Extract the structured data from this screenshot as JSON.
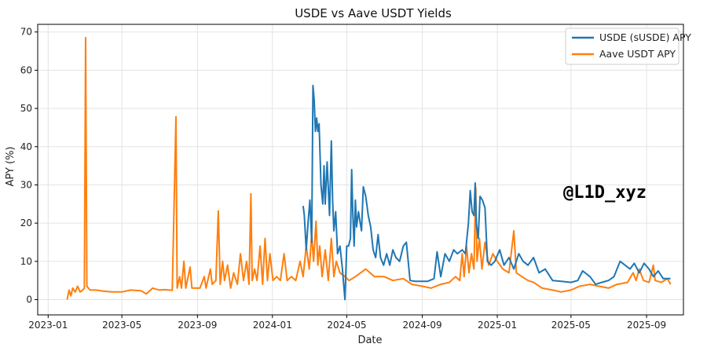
{
  "chart_data": {
    "type": "line",
    "title": "USDE vs Aave USDT Yields",
    "xlabel": "Date",
    "ylabel": "APY (%)",
    "x_ticks": [
      "2023-01",
      "2023-05",
      "2023-09",
      "2024-01",
      "2024-05",
      "2024-09",
      "2025-01",
      "2025-05",
      "2025-09"
    ],
    "y_ticks": [
      0,
      10,
      20,
      30,
      40,
      50,
      60,
      70
    ],
    "xlim": [
      "2022-12-15",
      "2025-10-31"
    ],
    "ylim": [
      -4,
      72
    ],
    "grid": true,
    "legend_position": "top-right",
    "watermark": "@L1D_xyz",
    "series": [
      {
        "name": "USDE (sUSDE) APY",
        "color": "#1f77b4",
        "points": [
          [
            "2024-02-20",
            24.5
          ],
          [
            "2024-02-22",
            22.0
          ],
          [
            "2024-02-25",
            13.0
          ],
          [
            "2024-02-28",
            20.0
          ],
          [
            "2024-03-02",
            26.0
          ],
          [
            "2024-03-05",
            15.0
          ],
          [
            "2024-03-07",
            56.0
          ],
          [
            "2024-03-09",
            52.0
          ],
          [
            "2024-03-11",
            44.0
          ],
          [
            "2024-03-13",
            47.5
          ],
          [
            "2024-03-15",
            44.0
          ],
          [
            "2024-03-17",
            46.0
          ],
          [
            "2024-03-20",
            30.0
          ],
          [
            "2024-03-23",
            25.0
          ],
          [
            "2024-03-25",
            35.0
          ],
          [
            "2024-03-27",
            25.0
          ],
          [
            "2024-03-30",
            36.0
          ],
          [
            "2024-04-03",
            22.0
          ],
          [
            "2024-04-06",
            41.5
          ],
          [
            "2024-04-08",
            26.0
          ],
          [
            "2024-04-10",
            18.0
          ],
          [
            "2024-04-13",
            23.0
          ],
          [
            "2024-04-16",
            12.0
          ],
          [
            "2024-04-20",
            14.0
          ],
          [
            "2024-04-24",
            8.0
          ],
          [
            "2024-04-28",
            0.0
          ],
          [
            "2024-05-01",
            14.0
          ],
          [
            "2024-05-04",
            14.0
          ],
          [
            "2024-05-07",
            16.0
          ],
          [
            "2024-05-09",
            34.0
          ],
          [
            "2024-05-11",
            22.0
          ],
          [
            "2024-05-13",
            14.0
          ],
          [
            "2024-05-15",
            26.0
          ],
          [
            "2024-05-17",
            19.0
          ],
          [
            "2024-05-20",
            23.0
          ],
          [
            "2024-05-23",
            20.0
          ],
          [
            "2024-05-25",
            18.0
          ],
          [
            "2024-05-28",
            29.5
          ],
          [
            "2024-06-01",
            27.0
          ],
          [
            "2024-06-05",
            22.0
          ],
          [
            "2024-06-09",
            19.0
          ],
          [
            "2024-06-13",
            13.0
          ],
          [
            "2024-06-17",
            11.0
          ],
          [
            "2024-06-21",
            17.0
          ],
          [
            "2024-06-25",
            11.0
          ],
          [
            "2024-06-30",
            9.0
          ],
          [
            "2024-07-05",
            12.0
          ],
          [
            "2024-07-10",
            9.0
          ],
          [
            "2024-07-15",
            13.0
          ],
          [
            "2024-07-20",
            11.0
          ],
          [
            "2024-07-26",
            10.0
          ],
          [
            "2024-08-01",
            14.0
          ],
          [
            "2024-08-06",
            15.0
          ],
          [
            "2024-08-12",
            5.0
          ],
          [
            "2024-08-20",
            4.8
          ],
          [
            "2024-09-01",
            4.8
          ],
          [
            "2024-09-10",
            4.8
          ],
          [
            "2024-09-20",
            5.5
          ],
          [
            "2024-09-25",
            12.5
          ],
          [
            "2024-10-01",
            6.0
          ],
          [
            "2024-10-08",
            12.0
          ],
          [
            "2024-10-15",
            10.0
          ],
          [
            "2024-10-22",
            13.0
          ],
          [
            "2024-10-28",
            12.0
          ],
          [
            "2024-11-05",
            13.0
          ],
          [
            "2024-11-10",
            12.0
          ],
          [
            "2024-11-15",
            20.0
          ],
          [
            "2024-11-18",
            28.5
          ],
          [
            "2024-11-21",
            23.0
          ],
          [
            "2024-11-24",
            22.0
          ],
          [
            "2024-11-26",
            30.5
          ],
          [
            "2024-11-28",
            20.0
          ],
          [
            "2024-12-01",
            16.0
          ],
          [
            "2024-12-04",
            27.0
          ],
          [
            "2024-12-08",
            26.0
          ],
          [
            "2024-12-12",
            24.0
          ],
          [
            "2024-12-16",
            10.0
          ],
          [
            "2024-12-22",
            9.0
          ],
          [
            "2024-12-28",
            10.0
          ],
          [
            "2025-01-05",
            13.0
          ],
          [
            "2025-01-12",
            9.0
          ],
          [
            "2025-01-20",
            11.0
          ],
          [
            "2025-01-28",
            8.0
          ],
          [
            "2025-02-05",
            12.0
          ],
          [
            "2025-02-12",
            10.0
          ],
          [
            "2025-02-20",
            9.0
          ],
          [
            "2025-03-01",
            11.0
          ],
          [
            "2025-03-10",
            7.0
          ],
          [
            "2025-03-20",
            8.0
          ],
          [
            "2025-04-01",
            5.0
          ],
          [
            "2025-04-15",
            4.8
          ],
          [
            "2025-05-01",
            4.5
          ],
          [
            "2025-05-12",
            5.0
          ],
          [
            "2025-05-20",
            7.5
          ],
          [
            "2025-06-01",
            6.0
          ],
          [
            "2025-06-10",
            4.0
          ],
          [
            "2025-06-20",
            4.5
          ],
          [
            "2025-07-01",
            5.0
          ],
          [
            "2025-07-10",
            6.0
          ],
          [
            "2025-07-20",
            10.0
          ],
          [
            "2025-07-28",
            9.0
          ],
          [
            "2025-08-05",
            8.0
          ],
          [
            "2025-08-12",
            9.5
          ],
          [
            "2025-08-20",
            7.0
          ],
          [
            "2025-08-28",
            9.5
          ],
          [
            "2025-09-05",
            8.0
          ],
          [
            "2025-09-12",
            6.0
          ],
          [
            "2025-09-20",
            7.5
          ],
          [
            "2025-09-28",
            5.5
          ],
          [
            "2025-10-10",
            5.5
          ]
        ]
      },
      {
        "name": "Aave USDT APY",
        "color": "#ff7f0e",
        "points": [
          [
            "2023-02-01",
            0.0
          ],
          [
            "2023-02-04",
            2.5
          ],
          [
            "2023-02-07",
            1.0
          ],
          [
            "2023-02-10",
            3.0
          ],
          [
            "2023-02-14",
            2.0
          ],
          [
            "2023-02-18",
            3.5
          ],
          [
            "2023-02-22",
            2.0
          ],
          [
            "2023-02-26",
            2.5
          ],
          [
            "2023-03-01",
            3.0
          ],
          [
            "2023-03-03",
            68.5
          ],
          [
            "2023-03-05",
            3.5
          ],
          [
            "2023-03-10",
            2.5
          ],
          [
            "2023-03-20",
            2.5
          ],
          [
            "2023-04-01",
            2.2
          ],
          [
            "2023-04-15",
            2.0
          ],
          [
            "2023-05-01",
            2.0
          ],
          [
            "2023-05-15",
            2.5
          ],
          [
            "2023-06-01",
            2.3
          ],
          [
            "2023-06-10",
            1.5
          ],
          [
            "2023-06-20",
            3.0
          ],
          [
            "2023-07-01",
            2.5
          ],
          [
            "2023-07-10",
            2.6
          ],
          [
            "2023-07-22",
            2.4
          ],
          [
            "2023-07-28",
            47.8
          ],
          [
            "2023-07-30",
            3.0
          ],
          [
            "2023-08-03",
            6.0
          ],
          [
            "2023-08-06",
            3.0
          ],
          [
            "2023-08-10",
            10.0
          ],
          [
            "2023-08-13",
            3.0
          ],
          [
            "2023-08-20",
            8.5
          ],
          [
            "2023-08-23",
            3.0
          ],
          [
            "2023-09-05",
            3.0
          ],
          [
            "2023-09-12",
            6.0
          ],
          [
            "2023-09-15",
            3.0
          ],
          [
            "2023-09-22",
            8.0
          ],
          [
            "2023-09-25",
            4.0
          ],
          [
            "2023-10-01",
            5.0
          ],
          [
            "2023-10-05",
            23.2
          ],
          [
            "2023-10-08",
            4.0
          ],
          [
            "2023-10-12",
            10.0
          ],
          [
            "2023-10-15",
            5.0
          ],
          [
            "2023-10-20",
            9.0
          ],
          [
            "2023-10-25",
            3.0
          ],
          [
            "2023-10-30",
            7.0
          ],
          [
            "2023-11-05",
            4.0
          ],
          [
            "2023-11-10",
            12.0
          ],
          [
            "2023-11-15",
            5.0
          ],
          [
            "2023-11-20",
            10.0
          ],
          [
            "2023-11-24",
            4.0
          ],
          [
            "2023-11-27",
            27.7
          ],
          [
            "2023-11-29",
            5.0
          ],
          [
            "2023-12-03",
            8.0
          ],
          [
            "2023-12-07",
            5.0
          ],
          [
            "2023-12-12",
            14.0
          ],
          [
            "2023-12-16",
            4.0
          ],
          [
            "2023-12-20",
            16.0
          ],
          [
            "2023-12-24",
            5.0
          ],
          [
            "2023-12-28",
            12.0
          ],
          [
            "2024-01-02",
            5.0
          ],
          [
            "2024-01-08",
            6.0
          ],
          [
            "2024-01-14",
            5.0
          ],
          [
            "2024-01-20",
            12.0
          ],
          [
            "2024-01-25",
            5.0
          ],
          [
            "2024-02-01",
            6.0
          ],
          [
            "2024-02-08",
            5.0
          ],
          [
            "2024-02-15",
            10.0
          ],
          [
            "2024-02-20",
            6.0
          ],
          [
            "2024-02-25",
            14.0
          ],
          [
            "2024-03-01",
            8.0
          ],
          [
            "2024-03-05",
            17.0
          ],
          [
            "2024-03-08",
            10.0
          ],
          [
            "2024-03-12",
            20.5
          ],
          [
            "2024-03-15",
            9.0
          ],
          [
            "2024-03-18",
            14.0
          ],
          [
            "2024-03-22",
            6.0
          ],
          [
            "2024-03-27",
            13.0
          ],
          [
            "2024-04-01",
            5.0
          ],
          [
            "2024-04-06",
            16.0
          ],
          [
            "2024-04-10",
            6.0
          ],
          [
            "2024-04-14",
            10.0
          ],
          [
            "2024-04-20",
            7.0
          ],
          [
            "2024-04-28",
            6.0
          ],
          [
            "2024-05-05",
            5.0
          ],
          [
            "2024-05-15",
            6.0
          ],
          [
            "2024-06-01",
            8.0
          ],
          [
            "2024-06-15",
            6.0
          ],
          [
            "2024-07-01",
            6.0
          ],
          [
            "2024-07-15",
            5.0
          ],
          [
            "2024-08-01",
            5.5
          ],
          [
            "2024-08-15",
            4.0
          ],
          [
            "2024-09-01",
            3.5
          ],
          [
            "2024-09-15",
            3.0
          ],
          [
            "2024-10-01",
            4.0
          ],
          [
            "2024-10-15",
            4.5
          ],
          [
            "2024-10-25",
            6.0
          ],
          [
            "2024-11-01",
            5.0
          ],
          [
            "2024-11-05",
            12.0
          ],
          [
            "2024-11-08",
            6.0
          ],
          [
            "2024-11-12",
            14.0
          ],
          [
            "2024-11-16",
            7.0
          ],
          [
            "2024-11-20",
            12.0
          ],
          [
            "2024-11-24",
            8.0
          ],
          [
            "2024-11-27",
            29.3
          ],
          [
            "2024-11-29",
            10.0
          ],
          [
            "2024-12-03",
            16.0
          ],
          [
            "2024-12-07",
            8.0
          ],
          [
            "2024-12-12",
            15.0
          ],
          [
            "2024-12-18",
            9.0
          ],
          [
            "2024-12-25",
            12.0
          ],
          [
            "2025-01-01",
            10.0
          ],
          [
            "2025-01-10",
            8.0
          ],
          [
            "2025-01-20",
            7.0
          ],
          [
            "2025-01-28",
            18.0
          ],
          [
            "2025-02-01",
            7.0
          ],
          [
            "2025-02-10",
            6.0
          ],
          [
            "2025-02-20",
            5.0
          ],
          [
            "2025-03-01",
            4.5
          ],
          [
            "2025-03-15",
            3.0
          ],
          [
            "2025-04-01",
            2.5
          ],
          [
            "2025-04-15",
            2.0
          ],
          [
            "2025-05-01",
            2.5
          ],
          [
            "2025-05-15",
            3.5
          ],
          [
            "2025-06-01",
            4.0
          ],
          [
            "2025-06-15",
            3.5
          ],
          [
            "2025-07-01",
            3.0
          ],
          [
            "2025-07-15",
            4.0
          ],
          [
            "2025-08-01",
            4.5
          ],
          [
            "2025-08-10",
            7.0
          ],
          [
            "2025-08-15",
            5.0
          ],
          [
            "2025-08-20",
            8.0
          ],
          [
            "2025-08-27",
            5.0
          ],
          [
            "2025-09-05",
            4.5
          ],
          [
            "2025-09-12",
            9.0
          ],
          [
            "2025-09-15",
            5.0
          ],
          [
            "2025-09-25",
            4.5
          ],
          [
            "2025-10-05",
            5.5
          ],
          [
            "2025-10-10",
            4.0
          ]
        ]
      }
    ]
  }
}
